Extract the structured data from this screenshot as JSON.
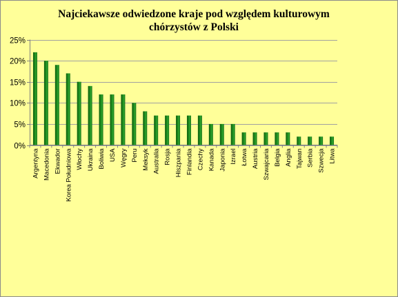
{
  "chart_data": {
    "type": "bar",
    "title_lines": [
      "Najciekawsze odwiedzone  kraje pod względem kulturowym",
      "chórzystów  z Polski"
    ],
    "xlabel": "",
    "ylabel": "",
    "ylim": [
      0,
      25
    ],
    "yticks": [
      "0%",
      "5%",
      "10%",
      "15%",
      "20%",
      "25%"
    ],
    "grid": true,
    "legend": "none",
    "bar_color": "#1f8a1f",
    "categories": [
      "Argentyna",
      "Macedonia",
      "Ekwador",
      "Korea Południowa",
      "Włochy",
      "Ukraina",
      "Boliwia",
      "USA",
      "Węgry",
      "Peru",
      "Meksyk",
      "Australia",
      "Rosja",
      "Hiszpania",
      "Finlandia",
      "Czechy",
      "Kanada",
      "Japonia",
      "Izrael",
      "Łotwa",
      "Austria",
      "Szwajcaria",
      "Belgia",
      "Anglia",
      "Tajwan",
      "Serbia",
      "Szwecja",
      "Litwa"
    ],
    "values": [
      22,
      20,
      19,
      17,
      15,
      14,
      12,
      12,
      12,
      10,
      8,
      7,
      7,
      7,
      7,
      7,
      5,
      5,
      5,
      3,
      3,
      3,
      3,
      3,
      2,
      2,
      2,
      2
    ]
  }
}
